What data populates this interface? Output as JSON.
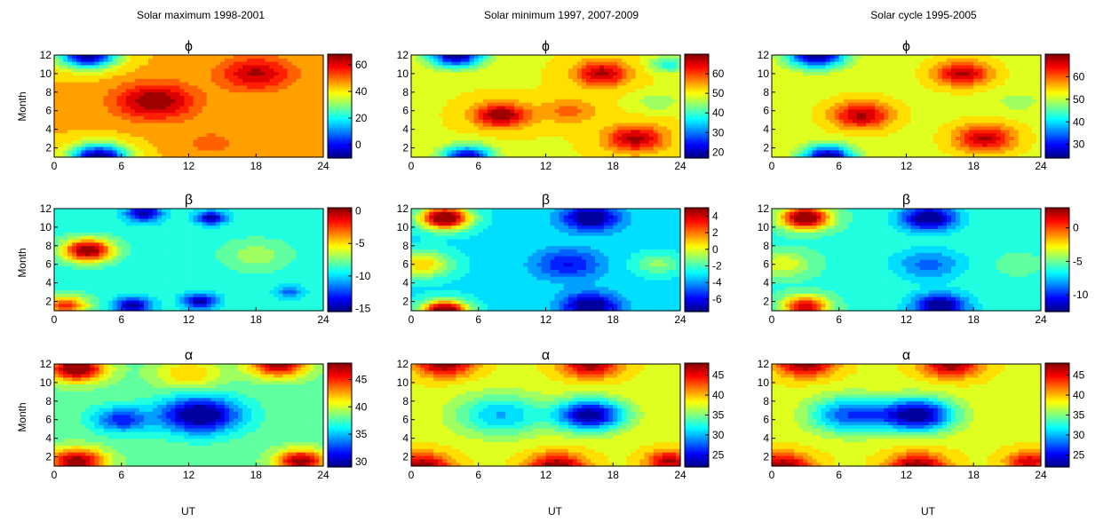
{
  "figure": {
    "column_titles": [
      "Solar maximum  1998-2001",
      "Solar minimum 1997, 2007-2009",
      "Solar cycle  1995-2005"
    ],
    "row_symbols": [
      "ϕ",
      "β",
      "α"
    ],
    "ylabel": "Month",
    "xlabel": "UT",
    "x_ticks": [
      "0",
      "6",
      "12",
      "18",
      "24"
    ],
    "y_ticks": [
      "2",
      "4",
      "6",
      "8",
      "10",
      "12"
    ]
  },
  "chart_data": [
    {
      "type": "heatmap",
      "column": "Solar maximum  1998-2001",
      "title": "ϕ",
      "xlabel": "",
      "ylabel": "Month",
      "xlim": [
        0,
        24
      ],
      "ylim": [
        1,
        12
      ],
      "colorbar": {
        "ticks": [
          0,
          20,
          40,
          60
        ],
        "tick_labels": [
          "0",
          "20",
          "40",
          "60"
        ],
        "range": [
          -10,
          68
        ]
      },
      "blobs": [
        {
          "x": 3,
          "y": 12,
          "v": -10,
          "s": 2.6
        },
        {
          "x": 4,
          "y": 1,
          "v": -10,
          "s": 2.6
        },
        {
          "x": 9,
          "y": 7,
          "v": 68,
          "s": 3.5
        },
        {
          "x": 18,
          "y": 10,
          "v": 64,
          "s": 3.2
        },
        {
          "x": 14,
          "y": 2.5,
          "v": 50,
          "s": 3
        }
      ],
      "base": 44
    },
    {
      "type": "heatmap",
      "column": "Solar minimum 1997, 2007-2009",
      "title": "ϕ",
      "xlabel": "",
      "ylabel": "",
      "xlim": [
        0,
        24
      ],
      "ylim": [
        1,
        12
      ],
      "colorbar": {
        "ticks": [
          20,
          30,
          40,
          50,
          60
        ],
        "tick_labels": [
          "20",
          "30",
          "40",
          "50",
          "60"
        ],
        "range": [
          17,
          70
        ]
      },
      "blobs": [
        {
          "x": 4,
          "y": 12,
          "v": 17,
          "s": 2.4
        },
        {
          "x": 5,
          "y": 1,
          "v": 20,
          "s": 2.2
        },
        {
          "x": 8,
          "y": 5.5,
          "v": 70,
          "s": 2.4
        },
        {
          "x": 17,
          "y": 10,
          "v": 68,
          "s": 2.4
        },
        {
          "x": 20,
          "y": 3,
          "v": 68,
          "s": 2.6
        },
        {
          "x": 14,
          "y": 6,
          "v": 58,
          "s": 2.5
        },
        {
          "x": 23,
          "y": 11,
          "v": 38,
          "s": 1.6
        },
        {
          "x": 22,
          "y": 7,
          "v": 44,
          "s": 1.8
        }
      ],
      "base": 50
    },
    {
      "type": "heatmap",
      "column": "Solar cycle  1995-2005",
      "title": "ϕ",
      "xlabel": "",
      "ylabel": "",
      "xlim": [
        0,
        24
      ],
      "ylim": [
        1,
        12
      ],
      "colorbar": {
        "ticks": [
          30,
          40,
          50,
          60
        ],
        "tick_labels": [
          "30",
          "40",
          "50",
          "60"
        ],
        "range": [
          24,
          70
        ]
      },
      "blobs": [
        {
          "x": 4,
          "y": 12,
          "v": 22,
          "s": 2.4
        },
        {
          "x": 5,
          "y": 1,
          "v": 24,
          "s": 2.2
        },
        {
          "x": 8,
          "y": 5.5,
          "v": 68,
          "s": 2.6
        },
        {
          "x": 17,
          "y": 10,
          "v": 68,
          "s": 2.4
        },
        {
          "x": 19,
          "y": 3,
          "v": 68,
          "s": 2.6
        },
        {
          "x": 22,
          "y": 7,
          "v": 48,
          "s": 1.8
        }
      ],
      "base": 52
    },
    {
      "type": "heatmap",
      "column": "Solar maximum  1998-2001",
      "title": "β",
      "xlabel": "",
      "ylabel": "Month",
      "xlim": [
        0,
        24
      ],
      "ylim": [
        1,
        12
      ],
      "colorbar": {
        "ticks": [
          0,
          -5,
          -10,
          -15
        ],
        "tick_labels": [
          "0",
          "-5",
          "-10",
          "-15"
        ],
        "range": [
          -15.5,
          0.5
        ]
      },
      "blobs": [
        {
          "x": 3,
          "y": 7.5,
          "v": 1,
          "s": 2.2
        },
        {
          "x": 1,
          "y": 1.5,
          "v": -2,
          "s": 2
        },
        {
          "x": 8,
          "y": 11.5,
          "v": -15,
          "s": 1.6
        },
        {
          "x": 7,
          "y": 1.5,
          "v": -15,
          "s": 1.6
        },
        {
          "x": 14,
          "y": 11,
          "v": -15,
          "s": 1.3
        },
        {
          "x": 13,
          "y": 2,
          "v": -15,
          "s": 1.5
        },
        {
          "x": 21,
          "y": 3,
          "v": -12,
          "s": 1.2
        },
        {
          "x": 18,
          "y": 7,
          "v": -7,
          "s": 3
        }
      ],
      "base": -9
    },
    {
      "type": "heatmap",
      "column": "Solar minimum 1997, 2007-2009",
      "title": "β",
      "xlabel": "",
      "ylabel": "",
      "xlim": [
        0,
        24
      ],
      "ylim": [
        1,
        12
      ],
      "colorbar": {
        "ticks": [
          4,
          2,
          0,
          -2,
          -4,
          -6
        ],
        "tick_labels": [
          "4",
          "2",
          "0",
          "-2",
          "-4",
          "-6"
        ],
        "range": [
          -7.5,
          5
        ]
      },
      "blobs": [
        {
          "x": 3,
          "y": 11,
          "v": 6,
          "s": 2.2
        },
        {
          "x": 3,
          "y": 1,
          "v": 6,
          "s": 2
        },
        {
          "x": 16,
          "y": 11,
          "v": -8,
          "s": 2.5
        },
        {
          "x": 16,
          "y": 1.5,
          "v": -8,
          "s": 2.5
        },
        {
          "x": 14,
          "y": 6,
          "v": -6,
          "s": 3
        },
        {
          "x": 1,
          "y": 6,
          "v": 1,
          "s": 2.5
        },
        {
          "x": 22,
          "y": 6,
          "v": -1,
          "s": 2
        }
      ],
      "base": -3
    },
    {
      "type": "heatmap",
      "column": "Solar cycle  1995-2005",
      "title": "β",
      "xlabel": "",
      "ylabel": "",
      "xlim": [
        0,
        24
      ],
      "ylim": [
        1,
        12
      ],
      "colorbar": {
        "ticks": [
          0,
          -5,
          -10
        ],
        "tick_labels": [
          "0",
          "-5",
          "-10"
        ],
        "range": [
          -12.5,
          3
        ]
      },
      "blobs": [
        {
          "x": 3,
          "y": 11,
          "v": 4,
          "s": 2.2
        },
        {
          "x": 3,
          "y": 1.5,
          "v": 2,
          "s": 2
        },
        {
          "x": 14,
          "y": 11,
          "v": -13,
          "s": 2.4
        },
        {
          "x": 15,
          "y": 1.5,
          "v": -13,
          "s": 2.4
        },
        {
          "x": 14,
          "y": 6,
          "v": -9,
          "s": 3
        },
        {
          "x": 1,
          "y": 6,
          "v": -3,
          "s": 2.5
        },
        {
          "x": 22,
          "y": 6,
          "v": -5,
          "s": 2
        }
      ],
      "base": -6
    },
    {
      "type": "heatmap",
      "column": "Solar maximum  1998-2001",
      "title": "α",
      "xlabel": "UT",
      "ylabel": "Month",
      "xlim": [
        0,
        24
      ],
      "ylim": [
        1,
        12
      ],
      "colorbar": {
        "ticks": [
          30,
          35,
          40,
          45
        ],
        "tick_labels": [
          "30",
          "35",
          "40",
          "45"
        ],
        "range": [
          29,
          48
        ]
      },
      "blobs": [
        {
          "x": 13,
          "y": 6.5,
          "v": 28,
          "s": 3.5
        },
        {
          "x": 6,
          "y": 6,
          "v": 32,
          "s": 2.5
        },
        {
          "x": 2,
          "y": 11.5,
          "v": 49,
          "s": 2.5
        },
        {
          "x": 20,
          "y": 12,
          "v": 48,
          "s": 2.5
        },
        {
          "x": 2,
          "y": 1.5,
          "v": 48,
          "s": 2.5
        },
        {
          "x": 22,
          "y": 1.5,
          "v": 48,
          "s": 2.2
        },
        {
          "x": 12,
          "y": 11,
          "v": 42,
          "s": 3
        }
      ],
      "base": 38
    },
    {
      "type": "heatmap",
      "column": "Solar minimum 1997, 2007-2009",
      "title": "α",
      "xlabel": "UT",
      "ylabel": "",
      "xlim": [
        0,
        24
      ],
      "ylim": [
        1,
        12
      ],
      "colorbar": {
        "ticks": [
          25,
          30,
          35,
          40,
          45
        ],
        "tick_labels": [
          "25",
          "30",
          "35",
          "40",
          "45"
        ],
        "range": [
          22,
          48
        ]
      },
      "blobs": [
        {
          "x": 16,
          "y": 6.5,
          "v": 22,
          "s": 3
        },
        {
          "x": 8,
          "y": 6.5,
          "v": 30,
          "s": 4
        },
        {
          "x": 3,
          "y": 12,
          "v": 48,
          "s": 2.5
        },
        {
          "x": 16,
          "y": 12,
          "v": 48,
          "s": 2.5
        },
        {
          "x": 1,
          "y": 1,
          "v": 48,
          "s": 2.5
        },
        {
          "x": 13,
          "y": 1,
          "v": 48,
          "s": 2.5
        },
        {
          "x": 23,
          "y": 1.5,
          "v": 47,
          "s": 2
        }
      ],
      "base": 38
    },
    {
      "type": "heatmap",
      "column": "Solar cycle  1995-2005",
      "title": "α",
      "xlabel": "UT",
      "ylabel": "",
      "xlim": [
        0,
        24
      ],
      "ylim": [
        1,
        12
      ],
      "colorbar": {
        "ticks": [
          25,
          30,
          35,
          40,
          45
        ],
        "tick_labels": [
          "25",
          "30",
          "35",
          "40",
          "45"
        ],
        "range": [
          22,
          48
        ]
      },
      "blobs": [
        {
          "x": 13,
          "y": 6.5,
          "v": 22,
          "s": 3.2
        },
        {
          "x": 7,
          "y": 6.5,
          "v": 27,
          "s": 3.5
        },
        {
          "x": 3,
          "y": 12,
          "v": 48,
          "s": 2.5
        },
        {
          "x": 16,
          "y": 12,
          "v": 48,
          "s": 2.5
        },
        {
          "x": 1,
          "y": 1,
          "v": 48,
          "s": 2.5
        },
        {
          "x": 13,
          "y": 1,
          "v": 48,
          "s": 2.5
        },
        {
          "x": 23,
          "y": 1.5,
          "v": 46,
          "s": 2
        }
      ],
      "base": 38
    }
  ]
}
